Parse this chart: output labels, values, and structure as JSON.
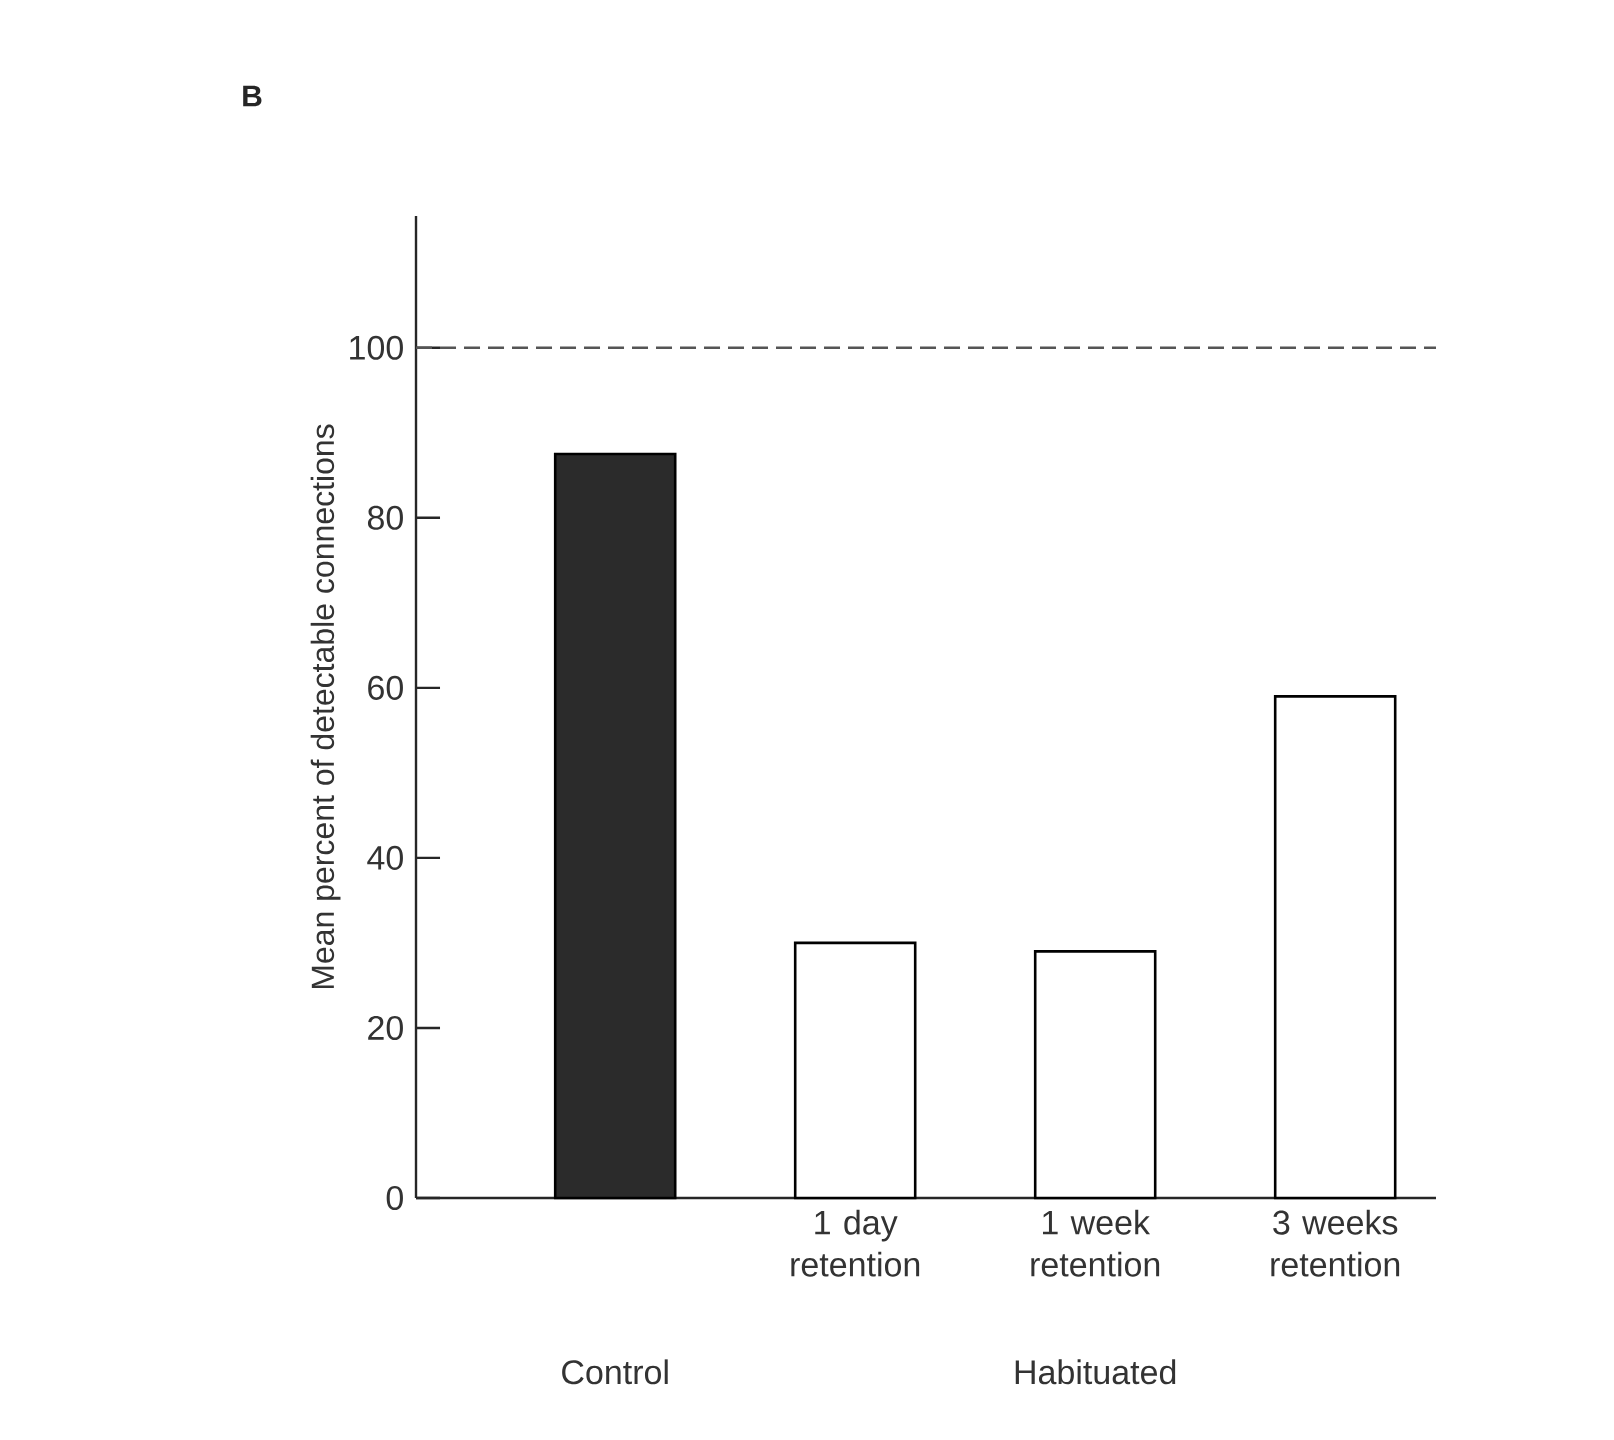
{
  "chart_data": {
    "type": "bar",
    "categories": [
      null,
      "1 day retention",
      "1 week retention",
      "3 weeks retention"
    ],
    "values": [
      87.5,
      30,
      29,
      59
    ],
    "colors": [
      "#2b2b2b",
      "#ffffff",
      "#ffffff",
      "#ffffff"
    ],
    "ylabel": "Mean percent of detectable connections",
    "ylim": [
      0,
      115.5
    ],
    "yticks": [
      0,
      20,
      40,
      60,
      80,
      100
    ],
    "ref_lines": [
      {
        "axis": "y",
        "value": 100,
        "color": "#555555",
        "line_style": "dashed"
      }
    ],
    "annotations": [
      "Control",
      "Habituated",
      "B"
    ]
  }
}
